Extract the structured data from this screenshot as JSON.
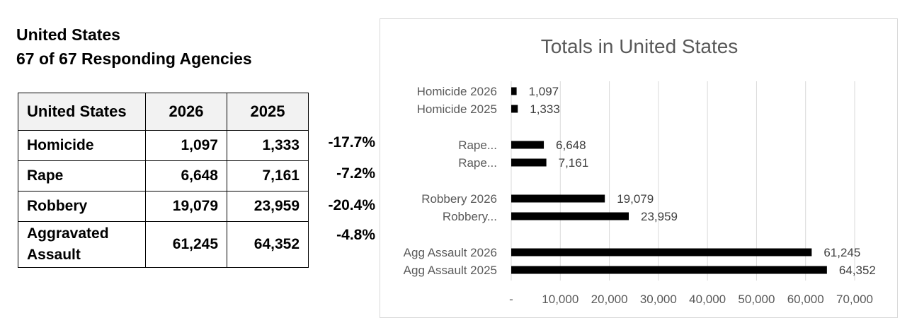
{
  "header": {
    "region": "United States",
    "agencies": "67 of 67 Responding Agencies"
  },
  "table": {
    "header": [
      "United States",
      "2026",
      "2025"
    ],
    "rows": [
      {
        "name": "Homicide",
        "y2026": "1,097",
        "y2025": "1,333",
        "change": "-17.7%"
      },
      {
        "name": "Rape",
        "y2026": "6,648",
        "y2025": "7,161",
        "change": "-7.2%"
      },
      {
        "name": "Robbery",
        "y2026": "19,079",
        "y2025": "23,959",
        "change": "-20.4%"
      },
      {
        "name": "Aggravated Assault",
        "y2026": "61,245",
        "y2025": "64,352",
        "change": "-4.8%"
      }
    ]
  },
  "chart_data": {
    "type": "bar",
    "orientation": "horizontal",
    "title": "Totals in United States",
    "categories": [
      "Homicide 2026",
      "Homicide 2025",
      "Rape...",
      "Rape...",
      "Robbery 2026",
      "Robbery...",
      "Agg Assault 2026",
      "Agg Assault 2025"
    ],
    "values": [
      1097,
      1333,
      6648,
      7161,
      19079,
      23959,
      61245,
      64352
    ],
    "value_labels": [
      "1,097",
      "1,333",
      "6,648",
      "7,161",
      "19,079",
      "23,959",
      "61,245",
      "64,352"
    ],
    "groups": [
      2,
      2,
      2,
      2
    ],
    "x_ticks": [
      "-",
      "10,000",
      "20,000",
      "30,000",
      "40,000",
      "50,000",
      "60,000",
      "70,000"
    ],
    "xlim": [
      0,
      70000
    ],
    "grid": true,
    "bar_color": "#000000",
    "grid_color": "#d9d9d9"
  }
}
